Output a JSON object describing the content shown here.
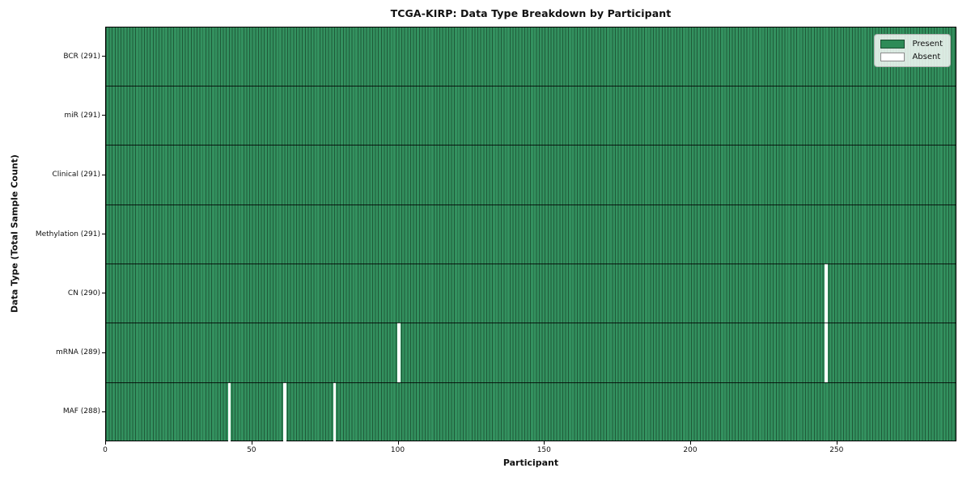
{
  "title": "TCGA-KIRP: Data Type Breakdown by Participant",
  "axes": {
    "xlabel": "Participant",
    "ylabel": "Data Type (Total Sample Count)"
  },
  "legend": {
    "items": [
      {
        "label": "Present",
        "color": "#2e8b57"
      },
      {
        "label": "Absent",
        "color": "#ffffff"
      }
    ]
  },
  "chart_data": {
    "type": "heatmap",
    "title": "TCGA-KIRP: Data Type Breakdown by Participant",
    "xlabel": "Participant",
    "ylabel": "Data Type (Total Sample Count)",
    "xlim": [
      0,
      291
    ],
    "x_ticks": [
      0,
      50,
      100,
      150,
      200,
      250
    ],
    "total_participants": 291,
    "legend_entries": [
      "Present",
      "Absent"
    ],
    "legend_position": "upper-right",
    "grid": false,
    "colors": {
      "present": "#2e8b57",
      "present_edge": "#1f5a39",
      "absent": "#ffffff"
    },
    "rows": [
      {
        "label": "BCR (291)",
        "data_type": "BCR",
        "present_count": 291,
        "absent_participants": []
      },
      {
        "label": "miR (291)",
        "data_type": "miR",
        "present_count": 291,
        "absent_participants": []
      },
      {
        "label": "Clinical (291)",
        "data_type": "Clinical",
        "present_count": 291,
        "absent_participants": []
      },
      {
        "label": "Methylation (291)",
        "data_type": "Methylation",
        "present_count": 291,
        "absent_participants": []
      },
      {
        "label": "CN (290)",
        "data_type": "CN",
        "present_count": 290,
        "absent_participants": [
          246
        ]
      },
      {
        "label": "mRNA (289)",
        "data_type": "mRNA",
        "present_count": 289,
        "absent_participants": [
          100,
          246
        ]
      },
      {
        "label": "MAF (288)",
        "data_type": "MAF",
        "present_count": 288,
        "absent_participants": [
          42,
          61,
          78
        ]
      }
    ]
  }
}
